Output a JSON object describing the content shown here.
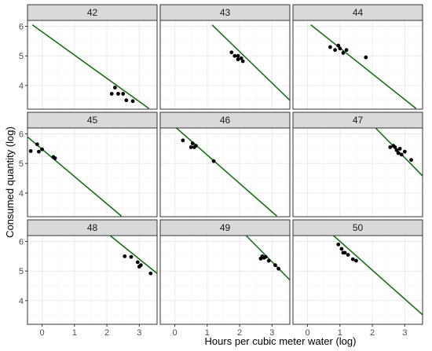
{
  "chart_data": {
    "type": "scatter",
    "facet_layout": "3x3 grid",
    "xlabel": "Hours per cubic meter water (log)",
    "ylabel": "Consumed quantity (log)",
    "xlim": [
      -0.45,
      3.55
    ],
    "ylim": [
      3.2,
      6.2
    ],
    "x_ticks": [
      0,
      1,
      2,
      3
    ],
    "y_ticks": [
      4,
      5,
      6
    ],
    "grid": true,
    "colors": {
      "points": "#000000",
      "line": "#1a6e1a",
      "panel_border": "#333333",
      "strip_fill": "#d9d9d9",
      "grid": "#ebebeb"
    },
    "panels": [
      {
        "label": "42",
        "line": [
          [
            -0.3,
            6.05
          ],
          [
            3.3,
            3.22
          ]
        ],
        "points": [
          [
            2.15,
            3.72
          ],
          [
            2.25,
            3.93
          ],
          [
            2.35,
            3.72
          ],
          [
            2.5,
            3.72
          ],
          [
            2.6,
            3.5
          ],
          [
            2.8,
            3.47
          ]
        ]
      },
      {
        "label": "43",
        "line": [
          [
            1.15,
            6.05
          ],
          [
            3.55,
            3.5
          ]
        ],
        "points": [
          [
            1.75,
            5.12
          ],
          [
            1.85,
            5.0
          ],
          [
            1.95,
            5.0
          ],
          [
            1.95,
            4.88
          ],
          [
            2.05,
            4.92
          ],
          [
            2.1,
            4.82
          ]
        ]
      },
      {
        "label": "44",
        "line": [
          [
            0.1,
            6.05
          ],
          [
            3.35,
            3.22
          ]
        ],
        "points": [
          [
            0.7,
            5.3
          ],
          [
            0.85,
            5.2
          ],
          [
            0.95,
            5.35
          ],
          [
            1.0,
            5.25
          ],
          [
            1.1,
            5.1
          ],
          [
            1.2,
            5.2
          ],
          [
            1.8,
            4.95
          ]
        ]
      },
      {
        "label": "45",
        "line": [
          [
            -0.45,
            5.9
          ],
          [
            2.45,
            3.22
          ]
        ],
        "points": [
          [
            -0.35,
            5.42
          ],
          [
            -0.15,
            5.65
          ],
          [
            -0.1,
            5.4
          ],
          [
            0.0,
            5.48
          ],
          [
            0.35,
            5.22
          ],
          [
            0.4,
            5.18
          ]
        ]
      },
      {
        "label": "46",
        "line": [
          [
            0.05,
            6.2
          ],
          [
            3.15,
            3.22
          ]
        ],
        "points": [
          [
            0.25,
            5.78
          ],
          [
            0.5,
            5.55
          ],
          [
            0.55,
            5.68
          ],
          [
            0.6,
            5.55
          ],
          [
            0.65,
            5.6
          ],
          [
            1.2,
            5.08
          ]
        ]
      },
      {
        "label": "47",
        "line": [
          [
            2.1,
            6.2
          ],
          [
            3.55,
            4.58
          ]
        ],
        "points": [
          [
            2.55,
            5.55
          ],
          [
            2.65,
            5.6
          ],
          [
            2.7,
            5.55
          ],
          [
            2.75,
            5.45
          ],
          [
            2.8,
            5.35
          ],
          [
            2.85,
            5.5
          ],
          [
            2.9,
            5.3
          ],
          [
            3.0,
            5.4
          ],
          [
            3.2,
            5.12
          ]
        ]
      },
      {
        "label": "48",
        "line": [
          [
            2.1,
            6.2
          ],
          [
            3.55,
            4.92
          ]
        ],
        "points": [
          [
            2.55,
            5.5
          ],
          [
            2.75,
            5.48
          ],
          [
            2.95,
            5.3
          ],
          [
            3.0,
            5.15
          ],
          [
            3.05,
            5.2
          ],
          [
            3.35,
            4.92
          ]
        ]
      },
      {
        "label": "49",
        "line": [
          [
            2.2,
            6.2
          ],
          [
            3.55,
            4.7
          ]
        ],
        "points": [
          [
            2.65,
            5.42
          ],
          [
            2.7,
            5.5
          ],
          [
            2.75,
            5.45
          ],
          [
            2.8,
            5.48
          ],
          [
            2.9,
            5.35
          ],
          [
            3.1,
            5.2
          ],
          [
            3.2,
            5.08
          ]
        ]
      },
      {
        "label": "50",
        "line": [
          [
            0.8,
            6.2
          ],
          [
            3.55,
            3.52
          ]
        ],
        "points": [
          [
            0.95,
            5.9
          ],
          [
            1.05,
            5.75
          ],
          [
            1.1,
            5.62
          ],
          [
            1.15,
            5.62
          ],
          [
            1.25,
            5.55
          ],
          [
            1.4,
            5.4
          ],
          [
            1.5,
            5.35
          ]
        ]
      }
    ]
  }
}
